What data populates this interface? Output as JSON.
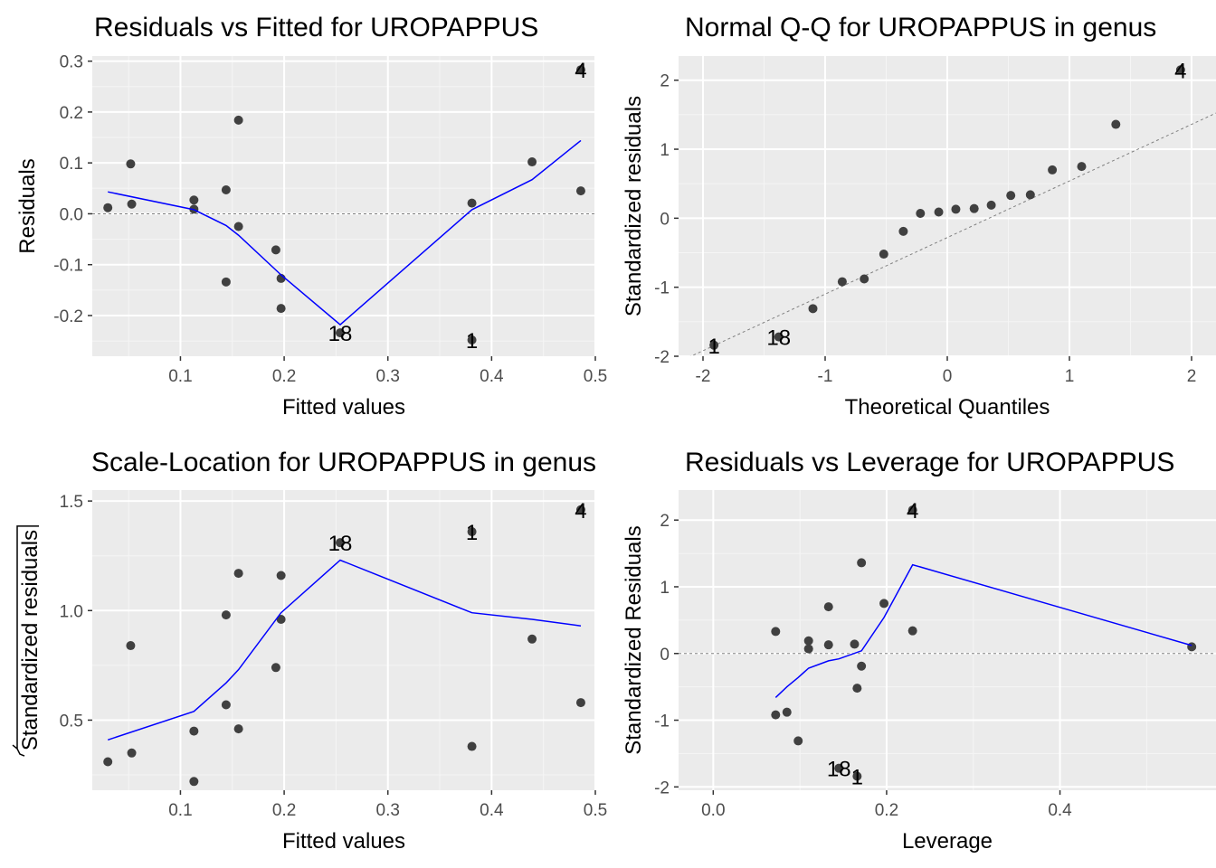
{
  "colors": {
    "panel_background": "#ebebeb",
    "grid_major": "#ffffff",
    "grid_minor": "#f5f5f5",
    "points": "#404040",
    "smooth_line": "#0000ff",
    "reference_line": "#808080",
    "tick_text": "#4d4d4d"
  },
  "chart_data": [
    {
      "id": "rvf",
      "type": "scatter",
      "title": "Residuals vs Fitted for UROPAPPUS",
      "xlabel": "Fitted values",
      "ylabel": "Residuals",
      "ylabel_sqrt": false,
      "xlim": [
        0.015,
        0.5
      ],
      "ylim": [
        -0.28,
        0.31
      ],
      "xticks": [
        0.1,
        0.2,
        0.3,
        0.4,
        0.5
      ],
      "xtick_labels": [
        "0.1",
        "0.2",
        "0.3",
        "0.4",
        "0.5"
      ],
      "yticks": [
        -0.2,
        -0.1,
        0.0,
        0.1,
        0.2,
        0.3
      ],
      "ytick_labels": [
        "-0.2",
        "-0.1",
        "0.0",
        "0.1",
        "0.2",
        "0.3"
      ],
      "hline": 0,
      "ref_line": null,
      "grid": true,
      "points": [
        {
          "x": 0.03,
          "y": 0.012
        },
        {
          "x": 0.052,
          "y": 0.098
        },
        {
          "x": 0.053,
          "y": 0.019
        },
        {
          "x": 0.113,
          "y": 0.027
        },
        {
          "x": 0.113,
          "y": 0.009
        },
        {
          "x": 0.144,
          "y": 0.047
        },
        {
          "x": 0.144,
          "y": -0.134
        },
        {
          "x": 0.156,
          "y": 0.184
        },
        {
          "x": 0.156,
          "y": -0.025
        },
        {
          "x": 0.192,
          "y": -0.071
        },
        {
          "x": 0.197,
          "y": -0.127
        },
        {
          "x": 0.197,
          "y": -0.186
        },
        {
          "x": 0.254,
          "y": -0.234
        },
        {
          "x": 0.381,
          "y": 0.021
        },
        {
          "x": 0.381,
          "y": -0.248
        },
        {
          "x": 0.439,
          "y": 0.102
        },
        {
          "x": 0.486,
          "y": 0.045
        },
        {
          "x": 0.486,
          "y": 0.283
        }
      ],
      "smooth": [
        {
          "x": 0.03,
          "y": 0.043
        },
        {
          "x": 0.113,
          "y": 0.008
        },
        {
          "x": 0.144,
          "y": -0.023
        },
        {
          "x": 0.156,
          "y": -0.042
        },
        {
          "x": 0.197,
          "y": -0.12
        },
        {
          "x": 0.254,
          "y": -0.218
        },
        {
          "x": 0.381,
          "y": 0.008
        },
        {
          "x": 0.439,
          "y": 0.067
        },
        {
          "x": 0.486,
          "y": 0.144
        }
      ],
      "labels": [
        {
          "text": "4",
          "x": 0.486,
          "y": 0.283
        },
        {
          "text": "18",
          "x": 0.254,
          "y": -0.234
        },
        {
          "text": "1",
          "x": 0.381,
          "y": -0.248
        }
      ]
    },
    {
      "id": "qq",
      "type": "scatter",
      "title": "Normal Q-Q for UROPAPPUS in genus",
      "xlabel": "Theoretical Quantiles",
      "ylabel": "Standardized residuals",
      "ylabel_sqrt": false,
      "xlim": [
        -2.2,
        2.2
      ],
      "ylim": [
        -2.0,
        2.35
      ],
      "xticks": [
        -2,
        -1,
        0,
        1,
        2
      ],
      "xtick_labels": [
        "-2",
        "-1",
        "0",
        "1",
        "2"
      ],
      "yticks": [
        -2,
        -1,
        0,
        1,
        2
      ],
      "ytick_labels": [
        "-2",
        "-1",
        "0",
        "1",
        "2"
      ],
      "hline": null,
      "ref_line": {
        "slope": 0.82,
        "intercept": -0.28
      },
      "grid": true,
      "points": [
        {
          "x": -1.91,
          "y": -1.84
        },
        {
          "x": -1.38,
          "y": -1.72
        },
        {
          "x": -1.1,
          "y": -1.31
        },
        {
          "x": -0.86,
          "y": -0.92
        },
        {
          "x": -0.68,
          "y": -0.88
        },
        {
          "x": -0.52,
          "y": -0.52
        },
        {
          "x": -0.36,
          "y": -0.19
        },
        {
          "x": -0.22,
          "y": 0.07
        },
        {
          "x": -0.07,
          "y": 0.09
        },
        {
          "x": 0.07,
          "y": 0.13
        },
        {
          "x": 0.22,
          "y": 0.14
        },
        {
          "x": 0.36,
          "y": 0.19
        },
        {
          "x": 0.52,
          "y": 0.33
        },
        {
          "x": 0.68,
          "y": 0.34
        },
        {
          "x": 0.86,
          "y": 0.7
        },
        {
          "x": 1.1,
          "y": 0.75
        },
        {
          "x": 1.38,
          "y": 1.36
        },
        {
          "x": 1.91,
          "y": 2.15
        }
      ],
      "smooth": [],
      "labels": [
        {
          "text": "4",
          "x": 1.91,
          "y": 2.15
        },
        {
          "text": "18",
          "x": -1.38,
          "y": -1.72
        },
        {
          "text": "1",
          "x": -1.91,
          "y": -1.84
        }
      ]
    },
    {
      "id": "sl",
      "type": "scatter",
      "title": "Scale-Location for UROPAPPUS in genus",
      "xlabel": "Fitted values",
      "ylabel": "Standardized residuals",
      "ylabel_sqrt": true,
      "xlim": [
        0.015,
        0.5
      ],
      "ylim": [
        0.18,
        1.55
      ],
      "xticks": [
        0.1,
        0.2,
        0.3,
        0.4,
        0.5
      ],
      "xtick_labels": [
        "0.1",
        "0.2",
        "0.3",
        "0.4",
        "0.5"
      ],
      "yticks": [
        0.5,
        1.0,
        1.5
      ],
      "ytick_labels": [
        "0.5",
        "1.0",
        "1.5"
      ],
      "hline": null,
      "ref_line": null,
      "grid": true,
      "points": [
        {
          "x": 0.03,
          "y": 0.31
        },
        {
          "x": 0.052,
          "y": 0.84
        },
        {
          "x": 0.053,
          "y": 0.35
        },
        {
          "x": 0.113,
          "y": 0.45
        },
        {
          "x": 0.113,
          "y": 0.22
        },
        {
          "x": 0.144,
          "y": 0.57
        },
        {
          "x": 0.144,
          "y": 0.98
        },
        {
          "x": 0.156,
          "y": 1.17
        },
        {
          "x": 0.156,
          "y": 0.46
        },
        {
          "x": 0.192,
          "y": 0.74
        },
        {
          "x": 0.197,
          "y": 0.96
        },
        {
          "x": 0.197,
          "y": 1.16
        },
        {
          "x": 0.254,
          "y": 1.31
        },
        {
          "x": 0.381,
          "y": 0.38
        },
        {
          "x": 0.381,
          "y": 1.36
        },
        {
          "x": 0.439,
          "y": 0.87
        },
        {
          "x": 0.486,
          "y": 0.58
        },
        {
          "x": 0.486,
          "y": 1.46
        }
      ],
      "smooth": [
        {
          "x": 0.03,
          "y": 0.41
        },
        {
          "x": 0.113,
          "y": 0.54
        },
        {
          "x": 0.144,
          "y": 0.67
        },
        {
          "x": 0.156,
          "y": 0.73
        },
        {
          "x": 0.197,
          "y": 0.99
        },
        {
          "x": 0.254,
          "y": 1.23
        },
        {
          "x": 0.381,
          "y": 0.99
        },
        {
          "x": 0.439,
          "y": 0.96
        },
        {
          "x": 0.486,
          "y": 0.93
        }
      ],
      "labels": [
        {
          "text": "4",
          "x": 0.486,
          "y": 1.46
        },
        {
          "text": "18",
          "x": 0.254,
          "y": 1.31
        },
        {
          "text": "1",
          "x": 0.381,
          "y": 1.36
        }
      ]
    },
    {
      "id": "rvl",
      "type": "scatter",
      "title": "Residuals vs Leverage for UROPAPPUS",
      "xlabel": "Leverage",
      "ylabel": "Standardized Residuals",
      "ylabel_sqrt": false,
      "xlim": [
        -0.04,
        0.58
      ],
      "ylim": [
        -2.05,
        2.45
      ],
      "xticks": [
        0.0,
        0.2,
        0.4
      ],
      "xtick_labels": [
        "0.0",
        "0.2",
        "0.4"
      ],
      "yticks": [
        -2,
        -1,
        0,
        1,
        2
      ],
      "ytick_labels": [
        "-2",
        "-1",
        "0",
        "1",
        "2"
      ],
      "hline": 0,
      "ref_line": null,
      "grid": true,
      "points": [
        {
          "x": 0.072,
          "y": 0.33
        },
        {
          "x": 0.072,
          "y": -0.92
        },
        {
          "x": 0.085,
          "y": -0.88
        },
        {
          "x": 0.098,
          "y": -1.31
        },
        {
          "x": 0.11,
          "y": 0.19
        },
        {
          "x": 0.11,
          "y": 0.07
        },
        {
          "x": 0.133,
          "y": 0.7
        },
        {
          "x": 0.133,
          "y": 0.13
        },
        {
          "x": 0.145,
          "y": -1.72
        },
        {
          "x": 0.163,
          "y": 0.14
        },
        {
          "x": 0.166,
          "y": -0.52
        },
        {
          "x": 0.166,
          "y": -1.84
        },
        {
          "x": 0.171,
          "y": 1.36
        },
        {
          "x": 0.171,
          "y": -0.19
        },
        {
          "x": 0.197,
          "y": 0.75
        },
        {
          "x": 0.23,
          "y": 2.15
        },
        {
          "x": 0.23,
          "y": 0.34
        },
        {
          "x": 0.552,
          "y": 0.1
        }
      ],
      "smooth": [
        {
          "x": 0.072,
          "y": -0.66
        },
        {
          "x": 0.085,
          "y": -0.5
        },
        {
          "x": 0.098,
          "y": -0.36
        },
        {
          "x": 0.11,
          "y": -0.22
        },
        {
          "x": 0.133,
          "y": -0.11
        },
        {
          "x": 0.145,
          "y": -0.08
        },
        {
          "x": 0.171,
          "y": 0.04
        },
        {
          "x": 0.197,
          "y": 0.54
        },
        {
          "x": 0.23,
          "y": 1.33
        },
        {
          "x": 0.552,
          "y": 0.12
        }
      ],
      "labels": [
        {
          "text": "4",
          "x": 0.23,
          "y": 2.15
        },
        {
          "text": "18",
          "x": 0.145,
          "y": -1.72
        },
        {
          "text": "1",
          "x": 0.166,
          "y": -1.84
        }
      ]
    }
  ]
}
